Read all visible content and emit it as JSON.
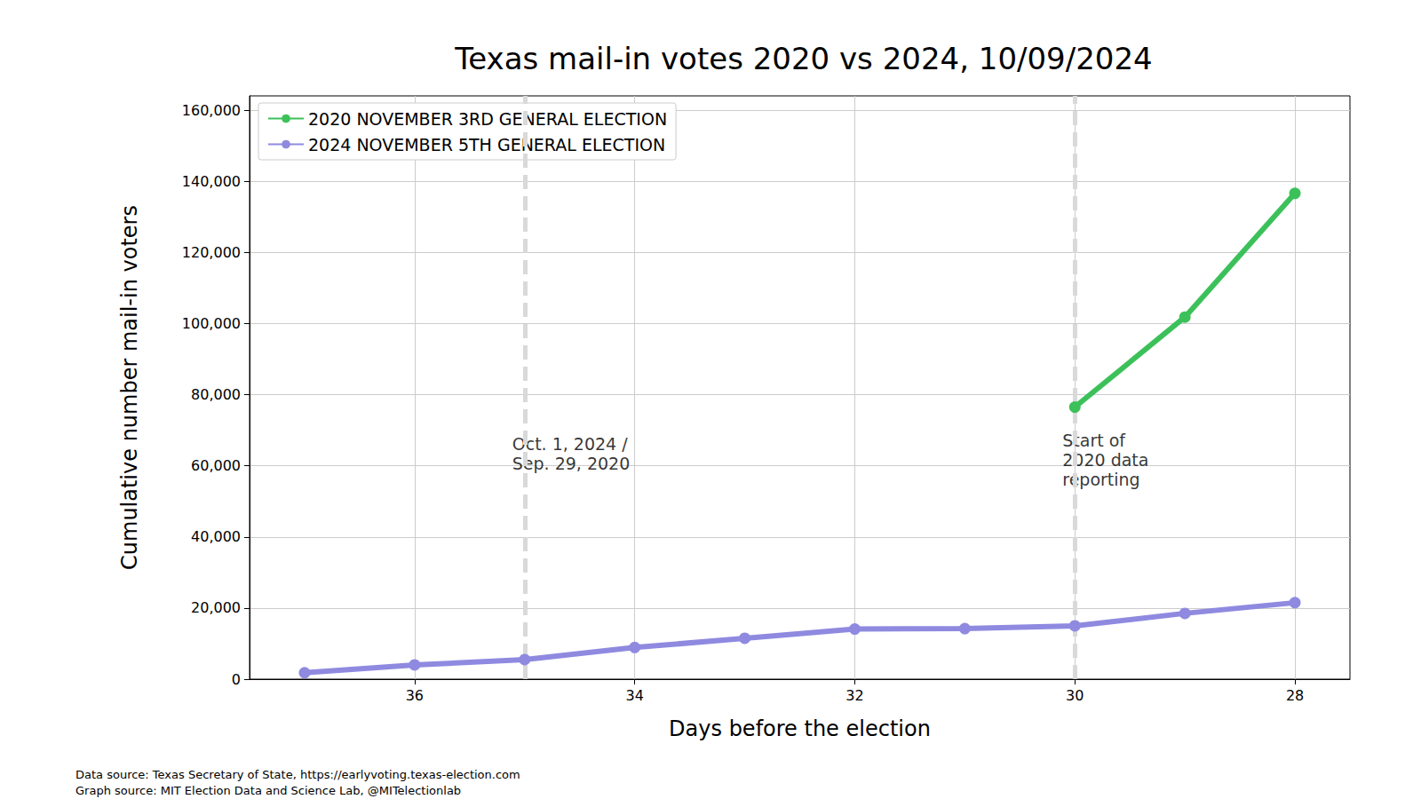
{
  "chart_data": {
    "type": "line",
    "title": "Texas mail-in votes 2020 vs 2024, 10/09/2024",
    "x_label": "Days before the election",
    "y_label": "Cumulative number mail-in voters",
    "xlim": [
      37.5,
      27.5
    ],
    "xticks": [
      36,
      34,
      32,
      30,
      28
    ],
    "ylim": [
      0,
      164000
    ],
    "yticks": [
      0,
      {
        "value": 20000,
        "label": "20,000"
      },
      {
        "value": 40000,
        "label": "40,000"
      },
      {
        "value": 60000,
        "label": "60,000"
      },
      {
        "value": 80000,
        "label": "80,000"
      },
      {
        "value": 100000,
        "label": "100,000"
      },
      {
        "value": 120000,
        "label": "120,000"
      },
      {
        "value": 140000,
        "label": "140,000"
      },
      {
        "value": 160000,
        "label": "160,000"
      }
    ],
    "grid": true,
    "legend": "upper left",
    "marker": "circle",
    "series": [
      {
        "name": "2020 NOVEMBER 3RD GENERAL ELECTION",
        "color": "#3cc15a",
        "x": [
          30,
          29,
          28
        ],
        "values": [
          76500,
          101800,
          136600
        ]
      },
      {
        "name": "2024 NOVEMBER 5TH GENERAL ELECTION",
        "color": "#8f8ae0",
        "x": [
          37,
          36,
          35,
          34,
          33,
          32,
          31,
          30,
          29,
          28
        ],
        "values": [
          1800,
          4000,
          5500,
          8900,
          11500,
          14100,
          14200,
          15000,
          18500,
          21500
        ]
      }
    ],
    "annotations": [
      {
        "text": "Oct. 1, 2024 /\nSep. 29, 2020",
        "x": 35,
        "y": 69000
      },
      {
        "text": "Start of\n2020 data\nreporting",
        "x": 30,
        "y": 70000
      }
    ],
    "source": [
      "Data source: Texas Secretary of State, https://earlyvoting.texas-election.com",
      "Graph source: MIT Election Data and Science Lab, @MITelectionlab"
    ]
  }
}
